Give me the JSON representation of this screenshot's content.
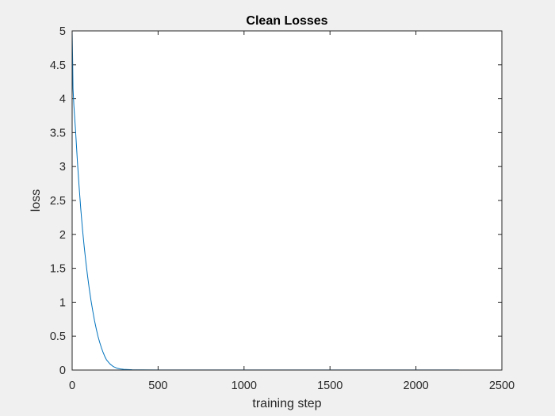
{
  "chart_data": {
    "type": "line",
    "title": "Clean Losses",
    "xlabel": "training step",
    "ylabel": "loss",
    "xlim": [
      0,
      2500
    ],
    "ylim": [
      0,
      5
    ],
    "xticks": [
      0,
      500,
      1000,
      1500,
      2000,
      2500
    ],
    "xtick_labels": [
      "0",
      "500",
      "1000",
      "1500",
      "2000",
      "2500"
    ],
    "yticks": [
      0,
      0.5,
      1,
      1.5,
      2,
      2.5,
      3,
      3.5,
      4,
      4.5,
      5
    ],
    "ytick_labels": [
      "0",
      "0.5",
      "1",
      "1.5",
      "2",
      "2.5",
      "3",
      "3.5",
      "4",
      "4.5",
      "5"
    ],
    "grid": false,
    "series": [
      {
        "color": "#0072BD",
        "x": [
          0,
          3,
          5,
          10,
          20,
          30,
          40,
          50,
          60,
          70,
          80,
          90,
          100,
          110,
          120,
          130,
          140,
          150,
          160,
          170,
          180,
          190,
          200,
          220,
          240,
          260,
          280,
          300,
          350,
          400,
          500,
          600,
          800,
          1000,
          1200,
          1500,
          1800,
          2000,
          2250
        ],
        "y": [
          5.0,
          4.55,
          4.15,
          3.9,
          3.52,
          3.1,
          2.72,
          2.38,
          2.08,
          1.82,
          1.59,
          1.38,
          1.19,
          1.02,
          0.87,
          0.73,
          0.61,
          0.5,
          0.41,
          0.33,
          0.26,
          0.2,
          0.15,
          0.09,
          0.05,
          0.028,
          0.016,
          0.01,
          0.005,
          0.003,
          0.002,
          0.0015,
          0.001,
          0.001,
          0.001,
          0.001,
          0.001,
          0.001,
          0.001
        ]
      }
    ]
  }
}
